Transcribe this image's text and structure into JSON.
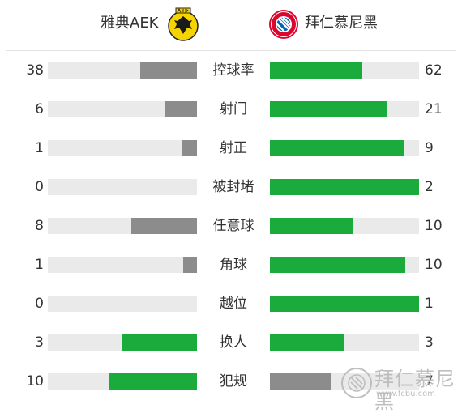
{
  "home_team": {
    "name": "雅典AEK",
    "logo": "aek-athens-logo"
  },
  "away_team": {
    "name": "拜仁慕尼黑",
    "logo": "fc-bayern-munchen-logo"
  },
  "colors": {
    "better": "#1aab3c",
    "worse": "#8c8c8c",
    "track": "#eaeaea"
  },
  "stats": [
    {
      "label": "控球率",
      "home": "38",
      "away": "62",
      "home_frac": 0.38,
      "away_frac": 0.62,
      "home_color": "#8c8c8c",
      "away_color": "#1aab3c"
    },
    {
      "label": "射门",
      "home": "6",
      "away": "21",
      "home_frac": 0.22,
      "away_frac": 0.78,
      "home_color": "#8c8c8c",
      "away_color": "#1aab3c"
    },
    {
      "label": "射正",
      "home": "1",
      "away": "9",
      "home_frac": 0.1,
      "away_frac": 0.9,
      "home_color": "#8c8c8c",
      "away_color": "#1aab3c"
    },
    {
      "label": "被封堵",
      "home": "0",
      "away": "2",
      "home_frac": 0.0,
      "away_frac": 1.0,
      "home_color": "#8c8c8c",
      "away_color": "#1aab3c"
    },
    {
      "label": "任意球",
      "home": "8",
      "away": "10",
      "home_frac": 0.44,
      "away_frac": 0.56,
      "home_color": "#8c8c8c",
      "away_color": "#1aab3c"
    },
    {
      "label": "角球",
      "home": "1",
      "away": "10",
      "home_frac": 0.09,
      "away_frac": 0.91,
      "home_color": "#8c8c8c",
      "away_color": "#1aab3c"
    },
    {
      "label": "越位",
      "home": "0",
      "away": "1",
      "home_frac": 0.0,
      "away_frac": 1.0,
      "home_color": "#8c8c8c",
      "away_color": "#1aab3c"
    },
    {
      "label": "换人",
      "home": "3",
      "away": "3",
      "home_frac": 0.5,
      "away_frac": 0.5,
      "home_color": "#1aab3c",
      "away_color": "#1aab3c"
    },
    {
      "label": "犯规",
      "home": "10",
      "away": "7",
      "home_frac": 0.59,
      "away_frac": 0.41,
      "home_color": "#1aab3c",
      "away_color": "#8c8c8c"
    }
  ],
  "watermark": {
    "text": "拜仁慕尼黑",
    "url": "www.fcbu.com",
    "logo": "fc-bayern-club-watermark-logo"
  }
}
